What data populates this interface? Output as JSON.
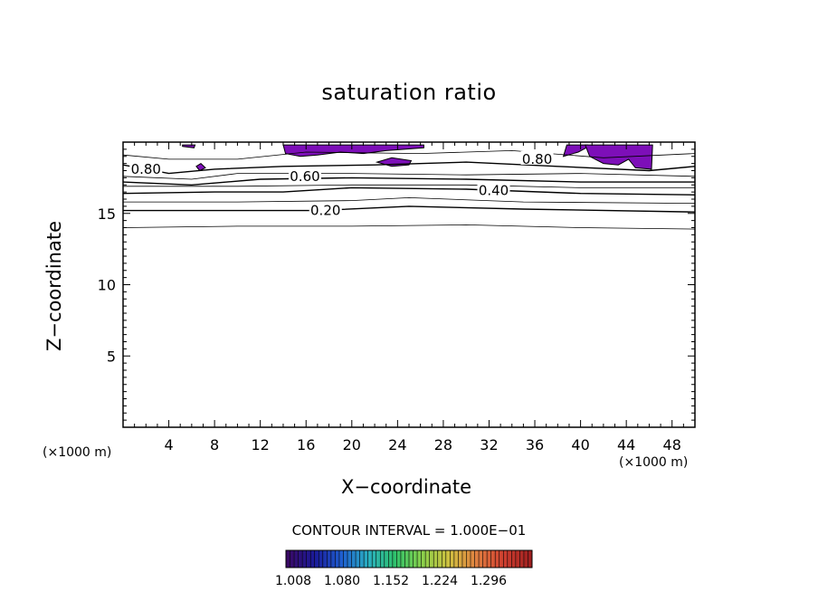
{
  "chart_data": {
    "type": "contour",
    "title": "saturation ratio",
    "xlabel": "X−coordinate",
    "ylabel": "Z−coordinate",
    "x_unit_left": "(×1000 m)",
    "x_unit_right": "(×1000 m)",
    "xlim": [
      0,
      50
    ],
    "ylim": [
      0,
      20
    ],
    "x_ticks": [
      4,
      8,
      12,
      16,
      20,
      24,
      28,
      32,
      36,
      40,
      44,
      48
    ],
    "y_ticks": [
      5,
      10,
      15
    ],
    "contour_interval_text": "CONTOUR INTERVAL = 1.000E−01",
    "contour_labels": [
      {
        "text": "0.80",
        "x": 2.0,
        "z": 18.1
      },
      {
        "text": "0.60",
        "x": 15.9,
        "z": 17.6
      },
      {
        "text": "0.40",
        "x": 32.4,
        "z": 16.6
      },
      {
        "text": "0.20",
        "x": 17.7,
        "z": 15.2
      },
      {
        "text": "0.80",
        "x": 36.2,
        "z": 18.8
      }
    ],
    "contours": [
      {
        "level": 0.1,
        "points": [
          [
            0,
            14.0
          ],
          [
            10,
            14.1
          ],
          [
            20,
            14.1
          ],
          [
            30,
            14.2
          ],
          [
            40,
            14.0
          ],
          [
            50,
            13.9
          ]
        ]
      },
      {
        "level": 0.2,
        "points": [
          [
            0,
            15.2
          ],
          [
            10,
            15.2
          ],
          [
            17,
            15.2
          ],
          [
            25,
            15.5
          ],
          [
            35,
            15.3
          ],
          [
            50,
            15.1
          ]
        ]
      },
      {
        "level": 0.3,
        "points": [
          [
            0,
            15.8
          ],
          [
            10,
            15.8
          ],
          [
            20,
            15.9
          ],
          [
            25,
            16.1
          ],
          [
            35,
            15.8
          ],
          [
            50,
            15.7
          ]
        ]
      },
      {
        "level": 0.4,
        "points": [
          [
            0,
            16.4
          ],
          [
            8,
            16.5
          ],
          [
            14,
            16.5
          ],
          [
            20,
            16.8
          ],
          [
            30,
            16.7
          ],
          [
            40,
            16.4
          ],
          [
            50,
            16.3
          ]
        ]
      },
      {
        "level": 0.5,
        "points": [
          [
            0,
            16.9
          ],
          [
            10,
            16.9
          ],
          [
            20,
            17.0
          ],
          [
            30,
            17.0
          ],
          [
            40,
            16.8
          ],
          [
            50,
            16.8
          ]
        ]
      },
      {
        "level": 0.6,
        "points": [
          [
            0,
            17.2
          ],
          [
            6,
            17.0
          ],
          [
            12,
            17.4
          ],
          [
            20,
            17.5
          ],
          [
            30,
            17.4
          ],
          [
            40,
            17.2
          ],
          [
            50,
            17.2
          ]
        ]
      },
      {
        "level": 0.7,
        "points": [
          [
            0,
            17.6
          ],
          [
            6,
            17.4
          ],
          [
            10,
            17.8
          ],
          [
            20,
            17.8
          ],
          [
            30,
            17.7
          ],
          [
            40,
            17.8
          ],
          [
            50,
            17.6
          ]
        ]
      },
      {
        "level": 0.8,
        "points": [
          [
            0,
            18.4
          ],
          [
            4,
            17.8
          ],
          [
            8,
            18.1
          ],
          [
            14,
            18.3
          ],
          [
            22,
            18.4
          ],
          [
            30,
            18.6
          ],
          [
            38,
            18.3
          ],
          [
            46,
            18.0
          ],
          [
            50,
            18.3
          ]
        ]
      },
      {
        "level": 0.9,
        "points": [
          [
            0,
            19.1
          ],
          [
            4,
            18.8
          ],
          [
            10,
            18.8
          ],
          [
            16,
            19.3
          ],
          [
            26,
            19.2
          ],
          [
            34,
            19.4
          ],
          [
            42,
            18.9
          ],
          [
            50,
            19.2
          ]
        ]
      }
    ],
    "supersaturated_regions": [
      {
        "color": "#7d0fb8",
        "points": [
          [
            5.2,
            19.7
          ],
          [
            6.2,
            19.6
          ],
          [
            6.3,
            19.8
          ],
          [
            5.2,
            19.8
          ]
        ]
      },
      {
        "color": "#7d0fb8",
        "points": [
          [
            14.0,
            19.8
          ],
          [
            14.2,
            19.2
          ],
          [
            15.5,
            19.0
          ],
          [
            17.0,
            19.1
          ],
          [
            19.0,
            19.3
          ],
          [
            21,
            19.2
          ],
          [
            23,
            19.4
          ],
          [
            26.3,
            19.6
          ],
          [
            26.3,
            19.8
          ]
        ]
      },
      {
        "color": "#7d0fb8",
        "points": [
          [
            22.2,
            18.6
          ],
          [
            23.5,
            18.3
          ],
          [
            25,
            18.4
          ],
          [
            25.2,
            18.7
          ],
          [
            23.5,
            18.9
          ]
        ]
      },
      {
        "color": "#7d0fb8",
        "points": [
          [
            6.4,
            18.3
          ],
          [
            6.7,
            18.0
          ],
          [
            7.2,
            18.2
          ],
          [
            6.8,
            18.5
          ]
        ]
      },
      {
        "color": "#7d0fb8",
        "points": [
          [
            38.5,
            19.0
          ],
          [
            39.8,
            19.3
          ],
          [
            40.5,
            19.6
          ],
          [
            40.6,
            19.8
          ],
          [
            38.8,
            19.8
          ]
        ]
      },
      {
        "color": "#7d0fb8",
        "points": [
          [
            40.4,
            19.8
          ],
          [
            40.8,
            19.0
          ],
          [
            42.0,
            18.5
          ],
          [
            43.3,
            18.4
          ],
          [
            44.2,
            18.8
          ],
          [
            44.8,
            18.2
          ],
          [
            46.2,
            18.1
          ],
          [
            46.3,
            19.8
          ]
        ]
      }
    ],
    "colorbar": {
      "labels": [
        "1.008",
        "1.080",
        "1.152",
        "1.224",
        "1.296"
      ],
      "colors": [
        "#3a0a66",
        "#1a1a99",
        "#1f5fd0",
        "#2ab0c0",
        "#2fc26a",
        "#8ad04a",
        "#d0c040",
        "#e08040",
        "#d04030",
        "#a02020"
      ]
    }
  }
}
